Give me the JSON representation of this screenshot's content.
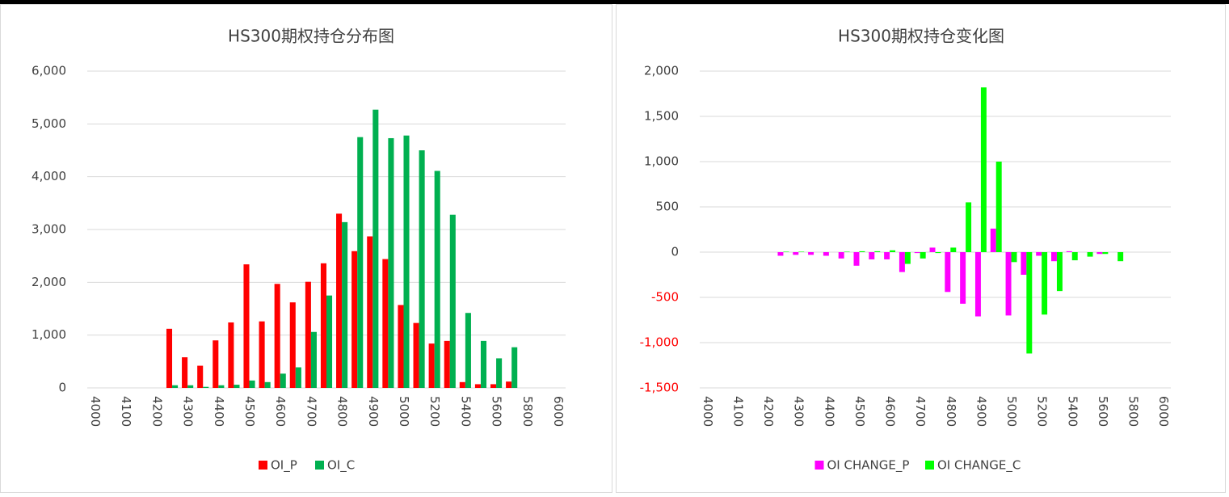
{
  "chart_data": [
    {
      "type": "bar",
      "title": "HS300期权持仓分布图",
      "categories": [
        "4000",
        null,
        "4100",
        null,
        "4200",
        null,
        "4300",
        null,
        "4400",
        null,
        "4500",
        null,
        "4600",
        null,
        "4700",
        null,
        "4800",
        null,
        "4900",
        null,
        "5000",
        null,
        "5200",
        null,
        "5400",
        null,
        "5600",
        null,
        "5800",
        null,
        "6000"
      ],
      "series": [
        {
          "name": "OI_P",
          "color": "#ff0000",
          "values": [
            null,
            null,
            null,
            null,
            null,
            1120,
            580,
            420,
            900,
            1240,
            2340,
            1260,
            1970,
            1620,
            2010,
            2360,
            3300,
            2590,
            2870,
            2440,
            1570,
            1230,
            840,
            890,
            110,
            70,
            70,
            120,
            null,
            null,
            null
          ]
        },
        {
          "name": "OI_C",
          "color": "#00b050",
          "values": [
            null,
            null,
            null,
            null,
            null,
            50,
            50,
            20,
            50,
            60,
            140,
            110,
            270,
            390,
            1060,
            1750,
            3140,
            4750,
            5270,
            4730,
            4780,
            4500,
            4110,
            3280,
            1420,
            890,
            560,
            770,
            null,
            null,
            null
          ]
        }
      ],
      "ylim": [
        0,
        6000
      ],
      "yticks": [
        0,
        {
          "value": 1000,
          "label": "1,000"
        },
        {
          "value": 2000,
          "label": "2,000"
        },
        {
          "value": 3000,
          "label": "3,000"
        },
        {
          "value": 4000,
          "label": "4,000"
        },
        {
          "value": 5000,
          "label": "5,000"
        },
        {
          "value": 6000,
          "label": "6,000"
        }
      ],
      "grid": true,
      "legend": "bottom"
    },
    {
      "type": "bar",
      "title": "HS300期权持仓变化图",
      "categories": [
        "4000",
        null,
        "4100",
        null,
        "4200",
        null,
        "4300",
        null,
        "4400",
        null,
        "4500",
        null,
        "4600",
        null,
        "4700",
        null,
        "4800",
        null,
        "4900",
        null,
        "5000",
        null,
        "5200",
        null,
        "5400",
        null,
        "5600",
        null,
        "5800",
        null,
        "6000"
      ],
      "series": [
        {
          "name": "OI CHANGE_P",
          "color": "#ff00ff",
          "values": [
            null,
            null,
            null,
            null,
            null,
            -40,
            -30,
            -30,
            -40,
            -70,
            -150,
            -80,
            -80,
            -220,
            -10,
            50,
            -440,
            -570,
            -710,
            260,
            -700,
            -250,
            -40,
            -100,
            10,
            0,
            -20,
            0,
            null,
            null,
            null
          ]
        },
        {
          "name": "OI CHANGE_C",
          "color": "#00ff00",
          "values": [
            null,
            null,
            null,
            null,
            null,
            5,
            5,
            0,
            0,
            5,
            10,
            10,
            20,
            -130,
            -70,
            -10,
            50,
            550,
            1820,
            1000,
            -110,
            -1120,
            -690,
            -430,
            -90,
            -50,
            -20,
            -100,
            null,
            null,
            null
          ]
        }
      ],
      "ylim": [
        -1500,
        2000
      ],
      "yticks": [
        {
          "value": -1500,
          "label": "-1,500"
        },
        {
          "value": -1000,
          "label": "-1,000"
        },
        -500,
        0,
        500,
        {
          "value": 1000,
          "label": "1,000"
        },
        {
          "value": 1500,
          "label": "1,500"
        },
        {
          "value": 2000,
          "label": "2,000"
        }
      ],
      "negative_tick_color": "#ff0000",
      "grid": true,
      "legend": "bottom"
    }
  ]
}
